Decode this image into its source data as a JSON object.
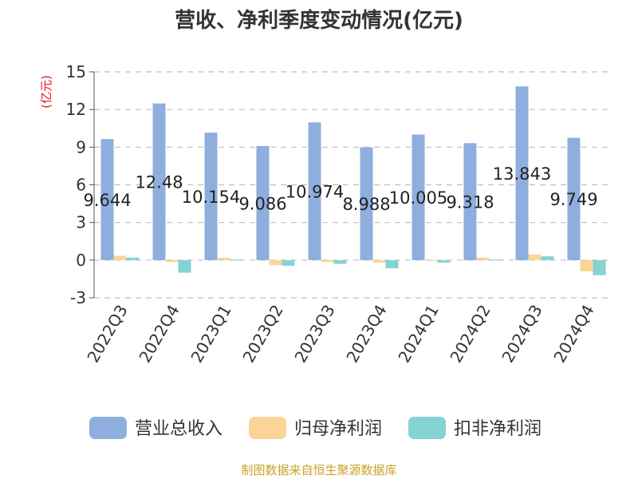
{
  "chart_data": {
    "type": "bar",
    "title": "营收、净利季度变动情况(亿元)",
    "unit": "(亿元)",
    "categories": [
      "2022Q3",
      "2022Q4",
      "2023Q1",
      "2023Q2",
      "2023Q3",
      "2023Q4",
      "2024Q1",
      "2024Q2",
      "2024Q3",
      "2024Q4"
    ],
    "series": [
      {
        "name": "营业总收入",
        "color": "#8eaedd",
        "values": [
          9.644,
          12.48,
          10.154,
          9.086,
          10.974,
          8.988,
          10.005,
          9.318,
          13.843,
          9.749
        ],
        "labels": [
          "9.644",
          "12.48",
          "10.154",
          "9.086",
          "10.974",
          "8.988",
          "10.005",
          "9.318",
          "13.843",
          "9.749"
        ]
      },
      {
        "name": "归母净利润",
        "color": "#fbd598",
        "values": [
          0.35,
          -0.15,
          0.2,
          -0.4,
          -0.15,
          -0.2,
          -0.05,
          0.2,
          0.45,
          -0.9
        ]
      },
      {
        "name": "扣非净利润",
        "color": "#86d3d4",
        "values": [
          0.2,
          -1.0,
          0.05,
          -0.45,
          -0.3,
          -0.65,
          -0.2,
          0.05,
          0.3,
          -1.2
        ]
      }
    ],
    "ylim": [
      -3,
      15
    ],
    "yticks": [
      -3,
      0,
      3,
      6,
      9,
      12,
      15
    ],
    "ytick_labels": [
      "-3",
      "0",
      "3",
      "6",
      "9",
      "12",
      "15"
    ],
    "grid": true,
    "legend_position": "bottom"
  },
  "footer": {
    "source": "制图数据来自恒生聚源数据库"
  }
}
